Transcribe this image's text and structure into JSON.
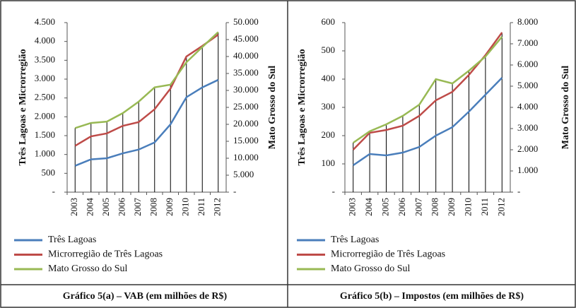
{
  "chart_data": [
    {
      "type": "line",
      "title": "Gráfico 5(a) – VAB (em milhões de R$)",
      "ylabel": "Três Lagoas e Microrregião",
      "y2label": "Mato Grosso do Sul",
      "categories": [
        "2003",
        "2004",
        "2005",
        "2006",
        "2007",
        "2008",
        "2009",
        "2010",
        "2011",
        "2012"
      ],
      "ylim": [
        0,
        4500
      ],
      "yticks": [
        {
          "value": 0,
          "label": "-"
        },
        500,
        {
          "value": 1000,
          "label": "1.000"
        },
        {
          "value": 1500,
          "label": "1.500"
        },
        {
          "value": 2000,
          "label": "2.000"
        },
        {
          "value": 2500,
          "label": "2.500"
        },
        {
          "value": 3000,
          "label": "3.000"
        },
        {
          "value": 3500,
          "label": "3.500"
        },
        {
          "value": 4000,
          "label": "4.000"
        },
        {
          "value": 4500,
          "label": "4.500"
        }
      ],
      "y2lim": [
        0,
        50000
      ],
      "y2ticks": [
        {
          "value": 0,
          "label": "-"
        },
        {
          "value": 5000,
          "label": "5.000"
        },
        {
          "value": 10000,
          "label": "10.000"
        },
        {
          "value": 15000,
          "label": "15.000"
        },
        {
          "value": 20000,
          "label": "20.000"
        },
        {
          "value": 25000,
          "label": "25.000"
        },
        {
          "value": 30000,
          "label": "30.000"
        },
        {
          "value": 35000,
          "label": "35.000"
        },
        {
          "value": 40000,
          "label": "40.000"
        },
        {
          "value": 45000,
          "label": "45.000"
        },
        {
          "value": 50000,
          "label": "50.000"
        }
      ],
      "grid": false,
      "series": [
        {
          "name": "Três Lagoas",
          "color": "#4a7ebb",
          "values": [
            700,
            870,
            900,
            1030,
            1130,
            1320,
            1800,
            2520,
            2780,
            2980
          ]
        },
        {
          "name": "Microrregião de Três Lagoas",
          "color": "#be4b48",
          "values": [
            1230,
            1480,
            1560,
            1760,
            1860,
            2200,
            2750,
            3600,
            3880,
            4180
          ]
        },
        {
          "name": "Mato Grosso do Sul",
          "color": "#98b954",
          "axis": "y2",
          "values": [
            18900,
            20400,
            20800,
            23300,
            26700,
            30900,
            31700,
            38300,
            42800,
            47200
          ]
        }
      ]
    },
    {
      "type": "line",
      "title": "Gráfico 5(b) – Impostos (em milhões de R$)",
      "ylabel": "Três Lagoas e Microrregião",
      "y2label": "Mato Grosso do Sul",
      "categories": [
        "2003",
        "2004",
        "2005",
        "2006",
        "2007",
        "2008",
        "2009",
        "2010",
        "2011",
        "2012"
      ],
      "ylim": [
        0,
        600
      ],
      "yticks": [
        {
          "value": 0,
          "label": "-"
        },
        100,
        200,
        300,
        400,
        500,
        600
      ],
      "y2lim": [
        0,
        8000
      ],
      "y2ticks": [
        {
          "value": 0,
          "label": "-"
        },
        {
          "value": 1000,
          "label": "1.000"
        },
        {
          "value": 2000,
          "label": "2.000"
        },
        {
          "value": 3000,
          "label": "3.000"
        },
        {
          "value": 4000,
          "label": "4.000"
        },
        {
          "value": 5000,
          "label": "5.000"
        },
        {
          "value": 6000,
          "label": "6.000"
        },
        {
          "value": 7000,
          "label": "7.000"
        },
        {
          "value": 8000,
          "label": "8.000"
        }
      ],
      "grid": false,
      "series": [
        {
          "name": "Três Lagoas",
          "color": "#4a7ebb",
          "values": [
            95,
            135,
            130,
            140,
            160,
            200,
            230,
            285,
            345,
            405
          ]
        },
        {
          "name": "Microrregião de Três Lagoas",
          "color": "#be4b48",
          "values": [
            150,
            210,
            220,
            235,
            270,
            325,
            355,
            415,
            485,
            565
          ]
        },
        {
          "name": "Mato Grosso do Sul",
          "color": "#98b954",
          "axis": "y2",
          "values": [
            2330,
            2870,
            3200,
            3600,
            4130,
            5330,
            5130,
            5730,
            6400,
            7330
          ]
        }
      ]
    }
  ]
}
